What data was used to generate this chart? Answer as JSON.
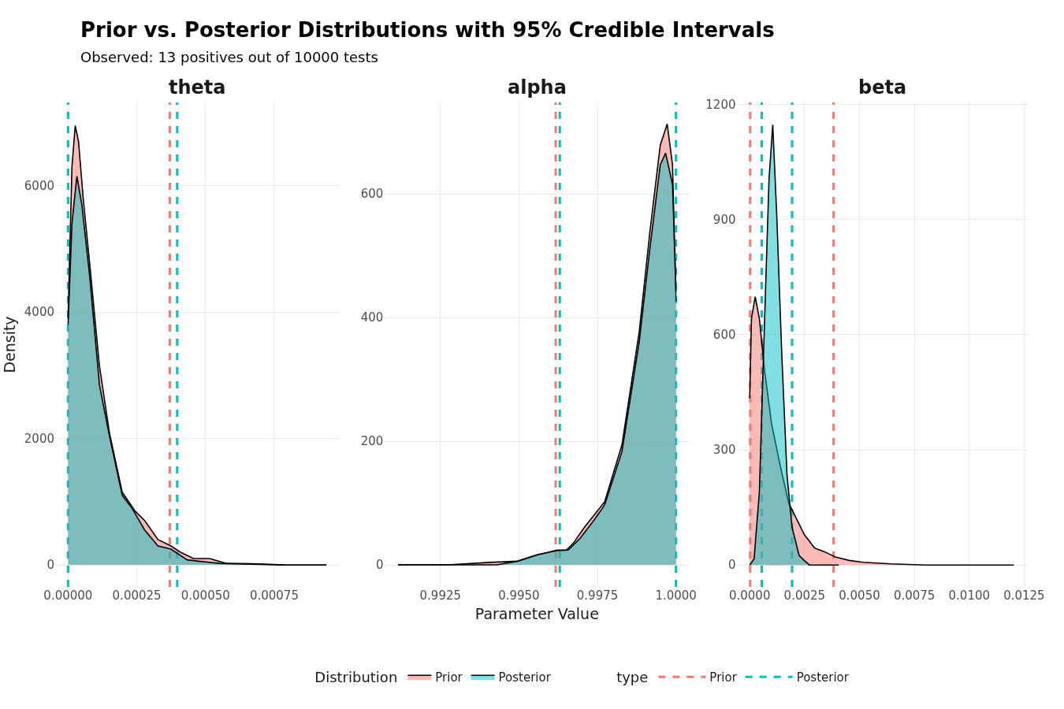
{
  "chart_data": [
    {
      "type": "area",
      "title": "theta",
      "ylabel": "Density",
      "legend": "bottom",
      "legend_title": "Distribution",
      "grid": true,
      "annotations": [
        "Prior vs. Posterior Distributions with 95% Credible Intervals",
        "Observed: 13 positives out of 10000 tests",
        "type"
      ],
      "xlim": [
        -4.7e-05,
        0.000987
      ],
      "ylim": [
        -348,
        7318
      ],
      "xticks": [
        {
          "value": 0,
          "label": "0.00000"
        },
        {
          "value": 0.00025,
          "label": "0.00025"
        },
        {
          "value": 0.0005,
          "label": "0.00050"
        },
        {
          "value": 0.00075,
          "label": "0.00075"
        }
      ],
      "yticks": [
        0,
        2000,
        4000,
        6000
      ],
      "series": [
        {
          "name": "Prior",
          "color": "#f8766d",
          "x": [
            0,
            1.4e-05,
            2.6e-05,
            3.8e-05,
            5.5e-05,
            7.9e-05,
            0.000114,
            0.00015,
            0.000197,
            0.000244,
            0.000279,
            0.000327,
            0.000374,
            0.000409,
            0.000456,
            0.000515,
            0.000574,
            0.000669,
            0.000787,
            0.00094
          ],
          "values": [
            3900,
            6300,
            6950,
            6700,
            5800,
            4750,
            3150,
            2100,
            1150,
            850,
            700,
            400,
            300,
            200,
            100,
            100,
            25,
            20,
            0,
            0
          ]
        },
        {
          "name": "Posterior",
          "color": "#00bfc4",
          "x": [
            0,
            1.4e-05,
            3.2e-05,
            5e-05,
            7.9e-05,
            0.000114,
            0.00015,
            0.000197,
            0.000232,
            0.000279,
            0.000327,
            0.000374,
            0.000433,
            0.000492,
            0.00055,
            0.000669,
            0.000787
          ],
          "values": [
            3800,
            5400,
            6150,
            5700,
            4550,
            2850,
            2050,
            1100,
            900,
            550,
            300,
            250,
            80,
            50,
            25,
            10,
            0
          ]
        }
      ],
      "ref_lines": [
        {
          "axis": "x",
          "value": 0.00037,
          "label": "Prior",
          "color": "#f8766d",
          "line_style": "dashed"
        },
        {
          "axis": "x",
          "value": 0,
          "label": "Posterior",
          "color": "#00bfc4",
          "line_style": "dashed"
        },
        {
          "axis": "x",
          "value": 0.000397,
          "color": "#00bfc4",
          "line_style": "dashed"
        }
      ]
    },
    {
      "type": "area",
      "title": "alpha",
      "xlabel": "Parameter Value",
      "grid": true,
      "xlim": [
        0.99071,
        1.00044
      ],
      "ylim": [
        -35.6,
        748
      ],
      "xticks": [
        {
          "value": 0.9925,
          "label": "0.9925"
        },
        {
          "value": 0.995,
          "label": "0.9950"
        },
        {
          "value": 0.9975,
          "label": "0.9975"
        },
        {
          "value": 1,
          "label": "1.0000"
        }
      ],
      "yticks": [
        0,
        200,
        400,
        600
      ],
      "series": [
        {
          "color": "#f8766d",
          "x": [
            0.99115,
            0.99275,
            0.99408,
            0.99496,
            0.99551,
            0.99584,
            0.9962,
            0.99651,
            0.99673,
            0.99706,
            0.9974,
            0.99773,
            0.99828,
            0.99883,
            0.99917,
            0.9995,
            0.99972,
            0.99989,
            1.0
          ],
          "values": [
            0,
            0,
            4,
            6,
            15,
            19,
            24,
            24,
            35,
            59,
            81,
            102,
            194,
            377,
            539,
            679,
            713,
            647,
            426
          ]
        },
        {
          "color": "#00bfc4",
          "x": [
            0.99115,
            0.9943,
            0.99496,
            0.99562,
            0.9962,
            0.99657,
            0.99695,
            0.9974,
            0.99773,
            0.99828,
            0.99883,
            0.99917,
            0.9995,
            0.99967,
            0.99989,
            1.0
          ],
          "values": [
            0,
            0,
            6,
            17,
            23,
            24,
            43,
            73,
            97,
            183,
            361,
            512,
            647,
            666,
            615,
            442
          ]
        }
      ],
      "ref_lines": [
        {
          "axis": "x",
          "value": 0.99617,
          "color": "#f8766d",
          "line_style": "dashed"
        },
        {
          "axis": "x",
          "value": 0.9963,
          "color": "#00bfc4",
          "line_style": "dashed"
        },
        {
          "axis": "x",
          "value": 1.0,
          "color": "#00bfc4",
          "line_style": "dashed"
        }
      ]
    },
    {
      "type": "area",
      "title": "beta",
      "grid": true,
      "xlim": [
        -0.0006,
        0.0127
      ],
      "ylim": [
        -57,
        1205
      ],
      "xticks": [
        {
          "value": 0,
          "label": "0.0000"
        },
        {
          "value": 0.0025,
          "label": "0.0025"
        },
        {
          "value": 0.005,
          "label": "0.0050"
        },
        {
          "value": 0.0075,
          "label": "0.0075"
        },
        {
          "value": 0.01,
          "label": "0.0100"
        },
        {
          "value": 0.0125,
          "label": "0.0125"
        }
      ],
      "yticks": [
        0,
        300,
        600,
        900,
        1200
      ],
      "series": [
        {
          "color": "#f8766d",
          "x": [
            0,
            8e-05,
            0.00025,
            0.00044,
            0.00068,
            0.00099,
            0.00138,
            0.00178,
            0.00217,
            0.00248,
            0.00296,
            0.00343,
            0.0039,
            0.00453,
            0.00516,
            0.00642,
            0.00799,
            0.01203
          ],
          "values": [
            434,
            642,
            699,
            642,
            506,
            370,
            261,
            161,
            116,
            80,
            44,
            34,
            21,
            12,
            7,
            3,
            0,
            0
          ]
        },
        {
          "color": "#00bfc4",
          "x": [
            0,
            0.0002,
            0.00044,
            0.00068,
            0.00088,
            0.00105,
            0.00123,
            0.00146,
            0.0017,
            0.00193,
            0.00225,
            0.00248,
            0.00272,
            0.00406
          ],
          "values": [
            0,
            16,
            189,
            642,
            1005,
            1147,
            914,
            551,
            234,
            98,
            25,
            12,
            0,
            0
          ]
        }
      ],
      "ref_lines": [
        {
          "axis": "x",
          "value": 2e-05,
          "color": "#f8766d",
          "line_style": "dashed"
        },
        {
          "axis": "x",
          "value": 0.00382,
          "color": "#f8766d",
          "line_style": "dashed"
        },
        {
          "axis": "x",
          "value": 0.00055,
          "color": "#00bfc4",
          "line_style": "dashed"
        },
        {
          "axis": "x",
          "value": 0.00193,
          "color": "#00bfc4",
          "line_style": "dashed"
        }
      ]
    }
  ]
}
